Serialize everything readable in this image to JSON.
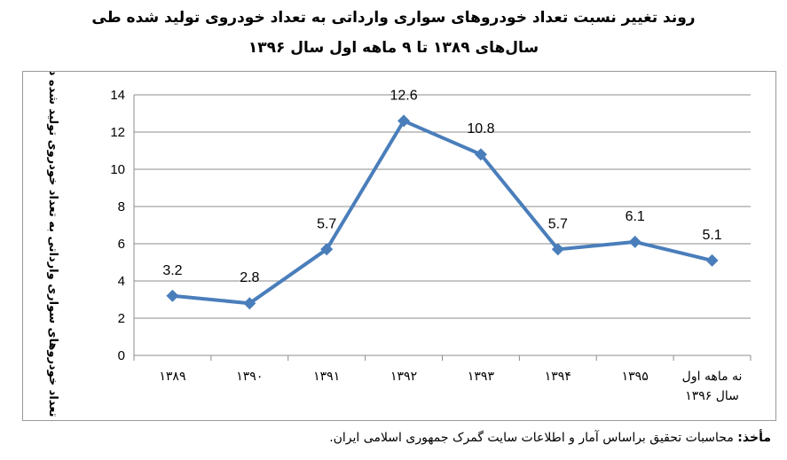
{
  "title": {
    "line1": "روند تغییر نسبت تعداد خودروهای سواری وارداتی به تعداد خودروی تولید شده طی",
    "line2": "سال‌های ۱۳۸۹ تا ۹ ماهه اول سال ۱۳۹۶"
  },
  "source": {
    "label": "مأخذ:",
    "text": " محاسبات تحقیق براساس آمار و اطلاعات سایت گمرک جمهوری اسلامی ایران."
  },
  "colors": {
    "series": "#4a7ebb",
    "grid": "#8c8c8c",
    "axis": "#8c8c8c"
  },
  "chart_data": {
    "type": "line",
    "title": "روند تغییر نسبت تعداد خودروهای سواری وارداتی به تعداد خودروی تولید شده طی سال‌های ۱۳۸۹ تا ۹ ماهه اول سال ۱۳۹۶",
    "xlabel": "",
    "ylabel": "نسبت تعداد خودروهای سواری وارداتی به تعداد خودروی تولید شده داخلی (درصد)",
    "categories": [
      "۱۳۸۹",
      "۱۳۹۰",
      "۱۳۹۱",
      "۱۳۹۲",
      "۱۳۹۳",
      "۱۳۹۴",
      "۱۳۹۵",
      "نه ماهه اول سال ۱۳۹۶"
    ],
    "category_lines": [
      [
        "۱۳۸۹"
      ],
      [
        "۱۳۹۰"
      ],
      [
        "۱۳۹۱"
      ],
      [
        "۱۳۹۲"
      ],
      [
        "۱۳۹۳"
      ],
      [
        "۱۳۹۴"
      ],
      [
        "۱۳۹۵"
      ],
      [
        "نه ماهه اول",
        "سال ۱۳۹۶"
      ]
    ],
    "values": [
      3.2,
      2.8,
      5.7,
      12.6,
      10.8,
      5.7,
      6.1,
      5.1
    ],
    "data_labels": [
      "3.2",
      "2.8",
      "5.7",
      "12.6",
      "10.8",
      "5.7",
      "6.1",
      "5.1"
    ],
    "ylim": [
      0,
      14
    ],
    "yticks": [
      0,
      2,
      4,
      6,
      8,
      10,
      12,
      14
    ],
    "grid": true,
    "marker": "diamond",
    "legend": "none"
  }
}
